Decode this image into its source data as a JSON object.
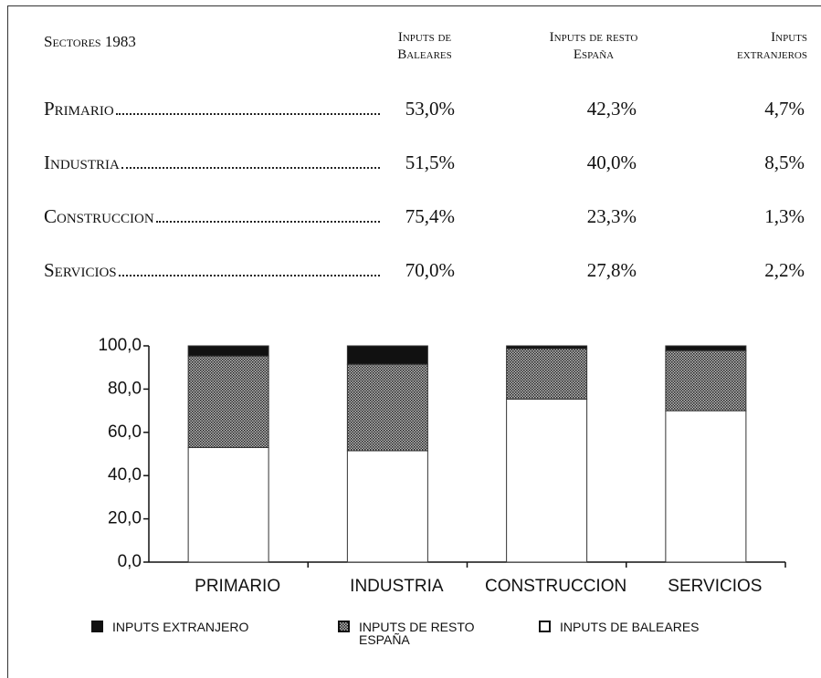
{
  "table": {
    "header": [
      "Sectores 1983",
      "Inputs de Baleares",
      "Inputs de resto España",
      "Inputs extranjeros"
    ],
    "rows": [
      [
        "Primario",
        "53,0%",
        "42,3%",
        "4,7%"
      ],
      [
        "Industria",
        "51,5%",
        "40,0%",
        "8,5%"
      ],
      [
        "Construccion",
        "75,4%",
        "23,3%",
        "1,3%"
      ],
      [
        "Servicios",
        "70,0%",
        "27,8%",
        "2,2%"
      ]
    ]
  },
  "chart_data": {
    "type": "stacked_bar",
    "categories": [
      "PRIMARIO",
      "INDUSTRIA",
      "CONSTRUCCION",
      "SERVICIOS"
    ],
    "series": [
      {
        "name": "INPUTS DE BALEARES",
        "color": "#ffffff",
        "values": [
          53.0,
          51.5,
          75.4,
          70.0
        ]
      },
      {
        "name": "INPUTS DE RESTO ESPAÑA",
        "color": "#5a5a5a",
        "values": [
          42.3,
          40.0,
          23.3,
          27.8
        ]
      },
      {
        "name": "INPUTS EXTRANJERO",
        "color": "#111111",
        "values": [
          4.7,
          8.5,
          1.3,
          2.2
        ]
      }
    ],
    "ylim": [
      0,
      100
    ],
    "yticks": [
      {
        "value": 0,
        "label": "0,0"
      },
      {
        "value": 20,
        "label": "20,0"
      },
      {
        "value": 40,
        "label": "40,0"
      },
      {
        "value": 60,
        "label": "60,0"
      },
      {
        "value": 80,
        "label": "80,0"
      },
      {
        "value": 100,
        "label": "100,0"
      }
    ]
  }
}
